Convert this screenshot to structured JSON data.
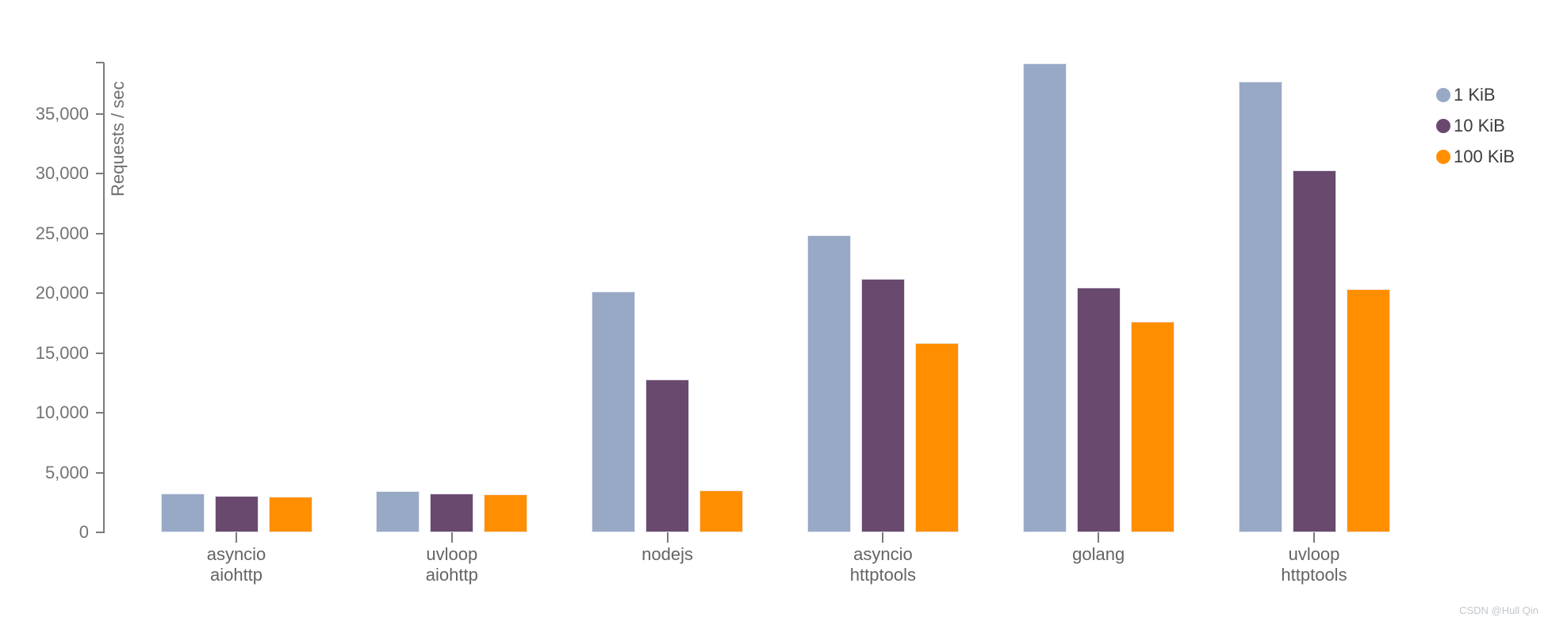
{
  "watermark": "CSDN @Hull Qin",
  "colors": {
    "axis": "#7b7b7b",
    "tick_label": "#737373",
    "x_label": "#646464",
    "legend_text": "#3c3c3c",
    "watermark": "#c3c7cc",
    "background": "#ffffff"
  },
  "chart_data": {
    "type": "bar",
    "title": "",
    "xlabel": "",
    "ylabel": "Requests / sec",
    "ylim": [
      0,
      39300
    ],
    "grid": false,
    "legend_position": "top-right",
    "categories": [
      "asyncio aiohttp",
      "uvloop aiohttp",
      "nodejs",
      "asyncio httptools",
      "golang",
      "uvloop httptools"
    ],
    "category_label_lines": [
      [
        "asyncio",
        "aiohttp"
      ],
      [
        "uvloop",
        "aiohttp"
      ],
      [
        "nodejs"
      ],
      [
        "asyncio",
        "httptools"
      ],
      [
        "golang"
      ],
      [
        "uvloop",
        "httptools"
      ]
    ],
    "series": [
      {
        "name": "1 KiB",
        "color": "#98a9c5",
        "values": [
          3250,
          3450,
          20100,
          24850,
          39200,
          37700
        ]
      },
      {
        "name": "10 KiB",
        "color": "#694a6e",
        "values": [
          3050,
          3250,
          12800,
          21200,
          20450,
          30250
        ]
      },
      {
        "name": "100 KiB",
        "color": "#ff8f00",
        "values": [
          2950,
          3200,
          3500,
          15850,
          17600,
          20350
        ]
      }
    ],
    "y_ticks": [
      {
        "value": 0,
        "label": "0"
      },
      {
        "value": 5000,
        "label": "5,000"
      },
      {
        "value": 10000,
        "label": "10,000"
      },
      {
        "value": 15000,
        "label": "15,000"
      },
      {
        "value": 20000,
        "label": "20,000"
      },
      {
        "value": 25000,
        "label": "25,000"
      },
      {
        "value": 30000,
        "label": "30,000"
      },
      {
        "value": 35000,
        "label": "35,000"
      }
    ]
  }
}
